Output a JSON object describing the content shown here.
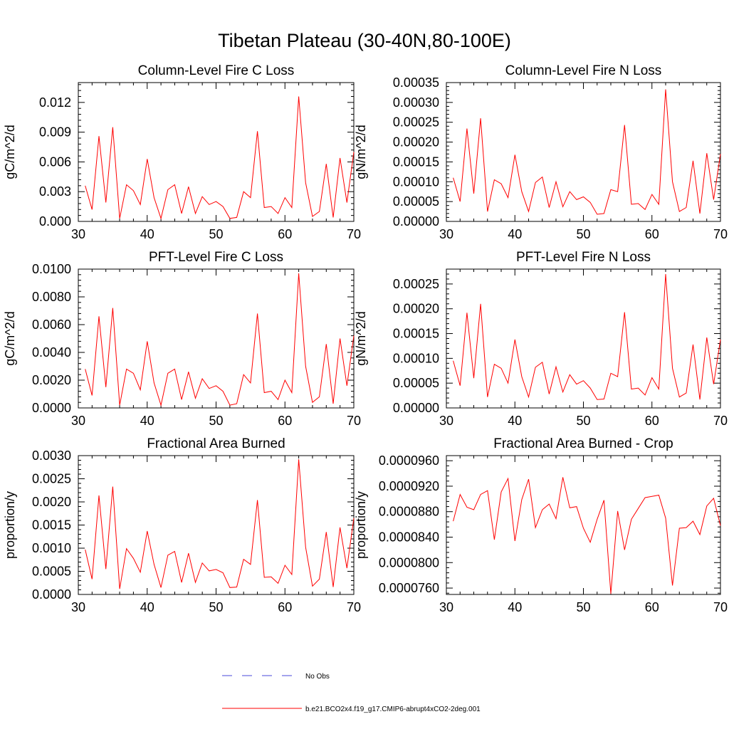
{
  "figure_title": "Tibetan Plateau (30-40N,80-100E)",
  "colors": {
    "model": "#ff0000",
    "obs": "#4a4adb",
    "frame": "#000000"
  },
  "legend": [
    {
      "label": "No Obs",
      "style": "dashed",
      "color": "#4a4adb"
    },
    {
      "label": "b.e21.BCO2x4.f19_g17.CMIP6-abrupt4xCO2-2deg.001",
      "style": "solid",
      "color": "#ff0000"
    }
  ],
  "chart_data": [
    {
      "type": "line",
      "title": "Column-Level Fire C Loss",
      "ylabel": "gC/m^2/d",
      "xlim": [
        30,
        70
      ],
      "ylim": [
        0,
        0.014
      ],
      "xticks": [
        "30",
        "40",
        "50",
        "60",
        "70"
      ],
      "yticks": [
        {
          "value": 0.0,
          "label": "0.000"
        },
        {
          "value": 0.003,
          "label": "0.003"
        },
        {
          "value": 0.006,
          "label": "0.006"
        },
        {
          "value": 0.009,
          "label": "0.009"
        },
        {
          "value": 0.012,
          "label": "0.012"
        }
      ],
      "series": [
        {
          "name": "b.e21.BCO2x4.f19_g17.CMIP6-abrupt4xCO2-2deg.001",
          "x": [
            31,
            32,
            33,
            34,
            35,
            36,
            37,
            38,
            39,
            40,
            41,
            42,
            43,
            44,
            45,
            46,
            47,
            48,
            49,
            50,
            51,
            52,
            53,
            54,
            55,
            56,
            57,
            58,
            59,
            60,
            61,
            62,
            63,
            64,
            65,
            66,
            67,
            68,
            69,
            70
          ],
          "values": [
            0.0036,
            0.0012,
            0.0086,
            0.0019,
            0.0095,
            0.0003,
            0.0037,
            0.0031,
            0.0017,
            0.0063,
            0.0024,
            0.0003,
            0.0032,
            0.0037,
            0.0008,
            0.0035,
            0.0008,
            0.0025,
            0.0017,
            0.002,
            0.0015,
            0.0003,
            0.0004,
            0.003,
            0.0024,
            0.0091,
            0.0014,
            0.0015,
            0.0008,
            0.0024,
            0.0014,
            0.0126,
            0.0039,
            0.0005,
            0.001,
            0.0058,
            0.0004,
            0.0064,
            0.0019,
            0.007
          ]
        }
      ]
    },
    {
      "type": "line",
      "title": "Column-Level Fire N Loss",
      "ylabel": "gN/m^2/d",
      "xlim": [
        30,
        70
      ],
      "ylim": [
        0,
        0.00035
      ],
      "xticks": [
        "30",
        "40",
        "50",
        "60",
        "70"
      ],
      "yticks": [
        {
          "value": 0.0,
          "label": "0.00000"
        },
        {
          "value": 5e-05,
          "label": "0.00005"
        },
        {
          "value": 0.0001,
          "label": "0.00010"
        },
        {
          "value": 0.00015,
          "label": "0.00015"
        },
        {
          "value": 0.0002,
          "label": "0.00020"
        },
        {
          "value": 0.00025,
          "label": "0.00025"
        },
        {
          "value": 0.0003,
          "label": "0.00030"
        },
        {
          "value": 0.00035,
          "label": "0.00035"
        }
      ],
      "series": [
        {
          "name": "b.e21.BCO2x4.f19_g17.CMIP6-abrupt4xCO2-2deg.001",
          "x": [
            31,
            32,
            33,
            34,
            35,
            36,
            37,
            38,
            39,
            40,
            41,
            42,
            43,
            44,
            45,
            46,
            47,
            48,
            49,
            50,
            51,
            52,
            53,
            54,
            55,
            56,
            57,
            58,
            59,
            60,
            61,
            62,
            63,
            64,
            65,
            66,
            67,
            68,
            69,
            70
          ],
          "values": [
            0.00011,
            5e-05,
            0.000234,
            7e-05,
            0.00026,
            2.5e-05,
            0.000105,
            9.5e-05,
            6e-05,
            0.000168,
            7.5e-05,
            2.5e-05,
            9.8e-05,
            0.000112,
            3.5e-05,
            0.0001,
            3.7e-05,
            7.5e-05,
            5.5e-05,
            6.2e-05,
            4.8e-05,
            1.8e-05,
            2e-05,
            8e-05,
            7.5e-05,
            0.000243,
            4.3e-05,
            4.5e-05,
            3e-05,
            6.8e-05,
            4.3e-05,
            0.000333,
            0.0001,
            2.5e-05,
            3.5e-05,
            0.000153,
            2e-05,
            0.000172,
            5.5e-05,
            0.00017
          ]
        }
      ]
    },
    {
      "type": "line",
      "title": "PFT-Level Fire C Loss",
      "ylabel": "gC/m^2/d",
      "xlim": [
        30,
        70
      ],
      "ylim": [
        0,
        0.01
      ],
      "xticks": [
        "30",
        "40",
        "50",
        "60",
        "70"
      ],
      "yticks": [
        {
          "value": 0.0,
          "label": "0.0000"
        },
        {
          "value": 0.002,
          "label": "0.0020"
        },
        {
          "value": 0.004,
          "label": "0.0040"
        },
        {
          "value": 0.006,
          "label": "0.0060"
        },
        {
          "value": 0.008,
          "label": "0.0080"
        },
        {
          "value": 0.01,
          "label": "0.0100"
        }
      ],
      "series": [
        {
          "name": "b.e21.BCO2x4.f19_g17.CMIP6-abrupt4xCO2-2deg.001",
          "x": [
            31,
            32,
            33,
            34,
            35,
            36,
            37,
            38,
            39,
            40,
            41,
            42,
            43,
            44,
            45,
            46,
            47,
            48,
            49,
            50,
            51,
            52,
            53,
            54,
            55,
            56,
            57,
            58,
            59,
            60,
            61,
            62,
            63,
            64,
            65,
            66,
            67,
            68,
            69,
            70
          ],
          "values": [
            0.0028,
            0.0009,
            0.0066,
            0.0015,
            0.0072,
            0.0002,
            0.0028,
            0.0025,
            0.0013,
            0.0048,
            0.0018,
            0.0002,
            0.0025,
            0.0028,
            0.0006,
            0.0026,
            0.0007,
            0.0021,
            0.0014,
            0.0016,
            0.0012,
            0.0002,
            0.0003,
            0.0024,
            0.0018,
            0.0068,
            0.0011,
            0.0012,
            0.0006,
            0.002,
            0.0011,
            0.0097,
            0.003,
            0.0004,
            0.0008,
            0.0046,
            0.0003,
            0.005,
            0.0016,
            0.0052
          ]
        }
      ]
    },
    {
      "type": "line",
      "title": "PFT-Level Fire N Loss",
      "ylabel": "gN/m^2/d",
      "xlim": [
        30,
        70
      ],
      "ylim": [
        0,
        0.00028
      ],
      "xticks": [
        "30",
        "40",
        "50",
        "60",
        "70"
      ],
      "yticks": [
        {
          "value": 0.0,
          "label": "0.00000"
        },
        {
          "value": 5e-05,
          "label": "0.00005"
        },
        {
          "value": 0.0001,
          "label": "0.00010"
        },
        {
          "value": 0.00015,
          "label": "0.00015"
        },
        {
          "value": 0.0002,
          "label": "0.00020"
        },
        {
          "value": 0.00025,
          "label": "0.00025"
        }
      ],
      "series": [
        {
          "name": "b.e21.BCO2x4.f19_g17.CMIP6-abrupt4xCO2-2deg.001",
          "x": [
            31,
            32,
            33,
            34,
            35,
            36,
            37,
            38,
            39,
            40,
            41,
            42,
            43,
            44,
            45,
            46,
            47,
            48,
            49,
            50,
            51,
            52,
            53,
            54,
            55,
            56,
            57,
            58,
            59,
            60,
            61,
            62,
            63,
            64,
            65,
            66,
            67,
            68,
            69,
            70
          ],
          "values": [
            9.5e-05,
            4.5e-05,
            0.000192,
            6e-05,
            0.00021,
            2.2e-05,
            8.8e-05,
            8e-05,
            5e-05,
            0.000138,
            6.3e-05,
            2.2e-05,
            8.2e-05,
            9.2e-05,
            2.8e-05,
            8.3e-05,
            3.2e-05,
            6.7e-05,
            4.8e-05,
            5.5e-05,
            4e-05,
            1.7e-05,
            1.8e-05,
            7e-05,
            6.3e-05,
            0.000193,
            3.8e-05,
            4e-05,
            2.6e-05,
            6.1e-05,
            3.8e-05,
            0.00027,
            8e-05,
            2.2e-05,
            3e-05,
            0.000128,
            1.7e-05,
            0.000142,
            4.8e-05,
            0.000138
          ]
        }
      ]
    },
    {
      "type": "line",
      "title": "Fractional Area Burned",
      "ylabel": "proportion/y",
      "xlim": [
        30,
        70
      ],
      "ylim": [
        0,
        0.003
      ],
      "xticks": [
        "30",
        "40",
        "50",
        "60",
        "70"
      ],
      "yticks": [
        {
          "value": 0.0,
          "label": "0.0000"
        },
        {
          "value": 0.0005,
          "label": "0.0005"
        },
        {
          "value": 0.001,
          "label": "0.0010"
        },
        {
          "value": 0.0015,
          "label": "0.0015"
        },
        {
          "value": 0.002,
          "label": "0.0020"
        },
        {
          "value": 0.0025,
          "label": "0.0025"
        },
        {
          "value": 0.003,
          "label": "0.0030"
        }
      ],
      "series": [
        {
          "name": "b.e21.BCO2x4.f19_g17.CMIP6-abrupt4xCO2-2deg.001",
          "x": [
            31,
            32,
            33,
            34,
            35,
            36,
            37,
            38,
            39,
            40,
            41,
            42,
            43,
            44,
            45,
            46,
            47,
            48,
            49,
            50,
            51,
            52,
            53,
            54,
            55,
            56,
            57,
            58,
            59,
            60,
            61,
            62,
            63,
            64,
            65,
            66,
            67,
            68,
            69,
            70
          ],
          "values": [
            0.00097,
            0.00033,
            0.00214,
            0.00055,
            0.00233,
            0.00012,
            0.00099,
            0.00078,
            0.00048,
            0.00137,
            0.00065,
            0.00015,
            0.00085,
            0.00093,
            0.00026,
            0.00089,
            0.00026,
            0.00068,
            0.00051,
            0.00054,
            0.00047,
            0.00015,
            0.00016,
            0.00076,
            0.00065,
            0.00204,
            0.00037,
            0.00038,
            0.00024,
            0.00063,
            0.00043,
            0.00292,
            0.00102,
            0.00018,
            0.00033,
            0.00135,
            0.00016,
            0.00145,
            0.00057,
            0.00165
          ]
        }
      ]
    },
    {
      "type": "line",
      "title": "Fractional Area Burned - Crop",
      "ylabel": "proportion/y",
      "xlim": [
        30,
        70
      ],
      "ylim": [
        7.5e-05,
        9.68e-05
      ],
      "xticks": [
        "30",
        "40",
        "50",
        "60",
        "70"
      ],
      "yticks": [
        {
          "value": 7.6e-05,
          "label": "0.0000760"
        },
        {
          "value": 8e-05,
          "label": "0.0000800"
        },
        {
          "value": 8.4e-05,
          "label": "0.0000840"
        },
        {
          "value": 8.8e-05,
          "label": "0.0000880"
        },
        {
          "value": 9.2e-05,
          "label": "0.0000920"
        },
        {
          "value": 9.6e-05,
          "label": "0.0000960"
        }
      ],
      "series": [
        {
          "name": "b.e21.BCO2x4.f19_g17.CMIP6-abrupt4xCO2-2deg.001",
          "x": [
            31,
            32,
            33,
            34,
            35,
            36,
            37,
            38,
            39,
            40,
            41,
            42,
            43,
            44,
            45,
            46,
            47,
            48,
            49,
            50,
            51,
            52,
            53,
            54,
            55,
            56,
            57,
            58,
            59,
            60,
            61,
            62,
            63,
            64,
            65,
            66,
            67,
            68,
            69,
            70
          ],
          "values": [
            8.65e-05,
            9.07e-05,
            8.87e-05,
            8.83e-05,
            9.07e-05,
            9.13e-05,
            8.36e-05,
            9.11e-05,
            9.32e-05,
            8.34e-05,
            8.99e-05,
            9.31e-05,
            8.55e-05,
            8.83e-05,
            8.92e-05,
            8.69e-05,
            9.34e-05,
            8.86e-05,
            8.88e-05,
            8.54e-05,
            8.32e-05,
            8.68e-05,
            8.98e-05,
            7.51e-05,
            8.81e-05,
            8.2e-05,
            8.68e-05,
            8.85e-05,
            9.02e-05,
            9.04e-05,
            9.06e-05,
            8.7e-05,
            7.64e-05,
            8.54e-05,
            8.55e-05,
            8.65e-05,
            8.44e-05,
            8.89e-05,
            9.01e-05,
            8.58e-05
          ]
        }
      ]
    }
  ]
}
